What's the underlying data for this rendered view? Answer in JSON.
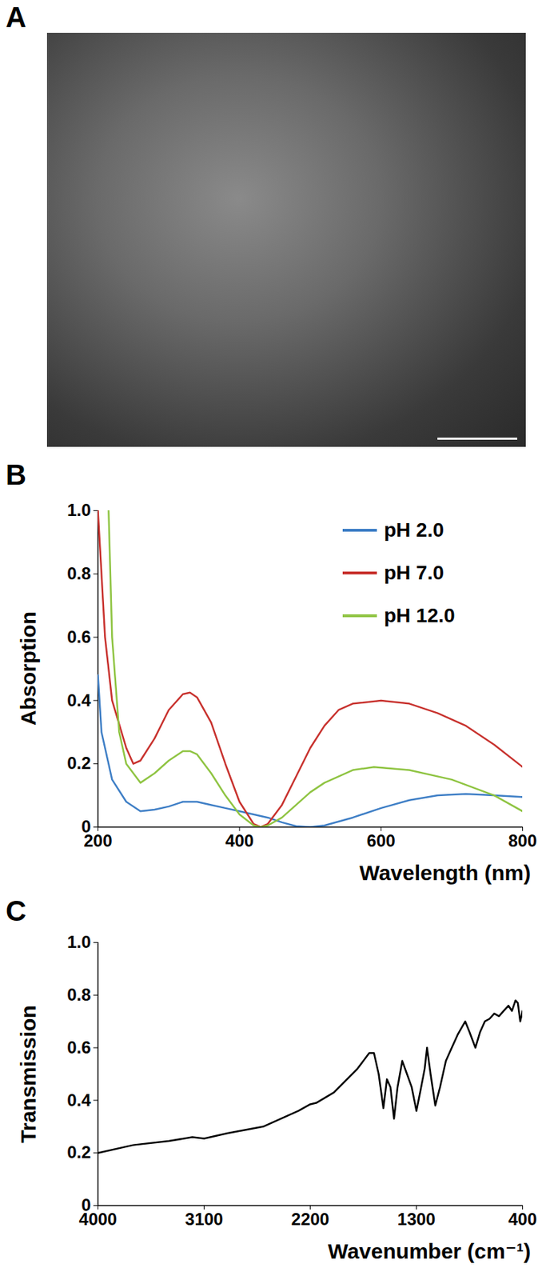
{
  "chart_data": [
    {
      "type": "image",
      "title": "A"
    },
    {
      "type": "line",
      "title": "B",
      "x_label": "Wavelength (nm)",
      "y_label": "Absorption",
      "xlim": [
        200,
        800
      ],
      "xticks": [
        200,
        400,
        600,
        800
      ],
      "ylim": [
        0,
        1
      ],
      "yticks": [
        0,
        0.2,
        0.4,
        0.6,
        0.8,
        {
          "value": 1,
          "label": "1.0"
        }
      ],
      "legend": "top-right",
      "series": [
        {
          "name": "pH 2.0",
          "color": "#3f7fc6",
          "x": [
            200,
            205,
            220,
            240,
            260,
            280,
            300,
            320,
            340,
            360,
            380,
            400,
            420,
            440,
            460,
            480,
            500,
            520,
            560,
            600,
            640,
            680,
            720,
            760,
            800
          ],
          "values": [
            0.48,
            0.3,
            0.15,
            0.08,
            0.05,
            0.055,
            0.065,
            0.08,
            0.08,
            0.07,
            0.06,
            0.05,
            0.04,
            0.03,
            0.015,
            0.003,
            0,
            0.005,
            0.03,
            0.06,
            0.085,
            0.1,
            0.105,
            0.1,
            0.095
          ]
        },
        {
          "name": "pH 7.0",
          "color": "#c8322e",
          "x": [
            200,
            210,
            220,
            240,
            250,
            260,
            280,
            300,
            320,
            330,
            340,
            360,
            380,
            400,
            420,
            430,
            440,
            460,
            480,
            500,
            520,
            540,
            560,
            600,
            640,
            680,
            720,
            760,
            800
          ],
          "values": [
            1.0,
            0.6,
            0.4,
            0.25,
            0.2,
            0.21,
            0.28,
            0.37,
            0.42,
            0.425,
            0.41,
            0.33,
            0.2,
            0.08,
            0.01,
            0,
            0.01,
            0.07,
            0.16,
            0.25,
            0.32,
            0.37,
            0.39,
            0.4,
            0.39,
            0.36,
            0.32,
            0.26,
            0.19
          ]
        },
        {
          "name": "pH 12.0",
          "color": "#8fc442",
          "x": [
            215,
            220,
            230,
            240,
            260,
            280,
            300,
            320,
            330,
            340,
            360,
            380,
            400,
            420,
            430,
            440,
            460,
            480,
            500,
            520,
            560,
            590,
            640,
            700,
            760,
            800
          ],
          "values": [
            1.0,
            0.6,
            0.3,
            0.2,
            0.14,
            0.17,
            0.21,
            0.24,
            0.24,
            0.23,
            0.17,
            0.1,
            0.04,
            0.005,
            0,
            0.005,
            0.03,
            0.07,
            0.11,
            0.14,
            0.18,
            0.19,
            0.18,
            0.15,
            0.1,
            0.05
          ]
        }
      ]
    },
    {
      "type": "line",
      "title": "C",
      "x_label": "Wavenumber (cm⁻¹)",
      "y_label": "Transmission",
      "xlim": [
        4000,
        400
      ],
      "xticks": [
        4000,
        3100,
        2200,
        1300,
        400
      ],
      "ylim": [
        0,
        1
      ],
      "yticks": [
        0,
        0.2,
        0.4,
        0.6,
        0.8,
        {
          "value": 1,
          "label": "1.0"
        }
      ],
      "series": [
        {
          "color": "#000000",
          "x": [
            4000,
            3700,
            3400,
            3200,
            3100,
            2900,
            2600,
            2300,
            2200,
            2150,
            2000,
            1800,
            1700,
            1660,
            1620,
            1580,
            1550,
            1520,
            1490,
            1460,
            1420,
            1380,
            1340,
            1300,
            1260,
            1230,
            1210,
            1180,
            1140,
            1100,
            1050,
            1000,
            950,
            886,
            850,
            800,
            760,
            720,
            680,
            640,
            600,
            560,
            520,
            490,
            460,
            440,
            420,
            400
          ],
          "values": [
            0.2,
            0.23,
            0.245,
            0.26,
            0.255,
            0.275,
            0.3,
            0.36,
            0.385,
            0.39,
            0.43,
            0.52,
            0.58,
            0.58,
            0.5,
            0.37,
            0.48,
            0.45,
            0.33,
            0.45,
            0.55,
            0.5,
            0.45,
            0.36,
            0.45,
            0.52,
            0.6,
            0.5,
            0.38,
            0.45,
            0.55,
            0.6,
            0.65,
            0.7,
            0.66,
            0.6,
            0.66,
            0.7,
            0.71,
            0.73,
            0.72,
            0.74,
            0.76,
            0.74,
            0.78,
            0.77,
            0.7,
            0.74
          ]
        }
      ]
    }
  ]
}
